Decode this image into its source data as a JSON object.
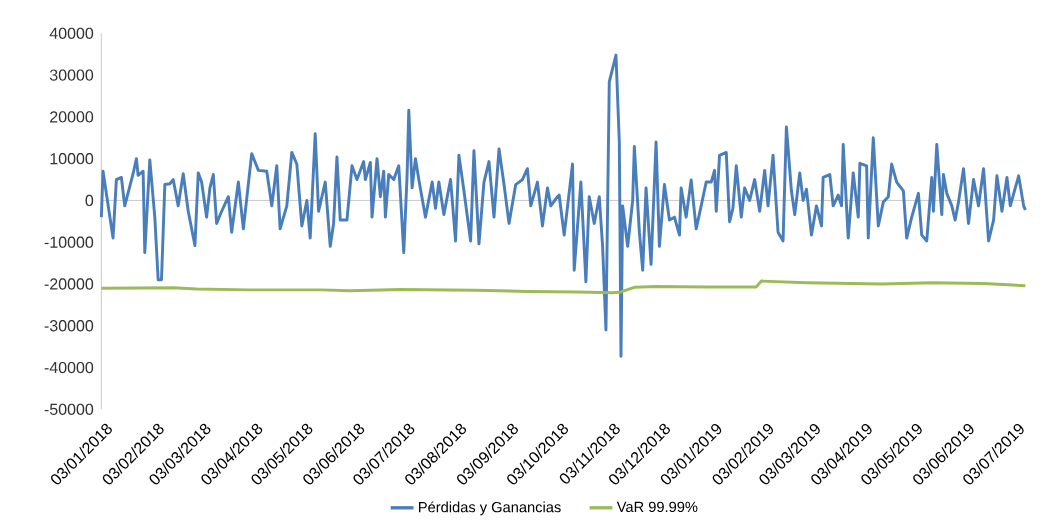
{
  "chart_data": {
    "type": "line",
    "legend": "bottom",
    "line_style": "solid",
    "xlim": [
      "2018-01-03",
      "2019-07-10"
    ],
    "ylim": [
      -50000,
      40000
    ],
    "yticks": [
      -50000,
      -40000,
      -30000,
      -20000,
      -10000,
      0,
      10000,
      20000,
      30000,
      40000
    ],
    "xticks": [
      {
        "value": "2018-01-03",
        "label": "03/01/2018"
      },
      {
        "value": "2018-02-03",
        "label": "03/02/2018"
      },
      {
        "value": "2018-03-03",
        "label": "03/03/2018"
      },
      {
        "value": "2018-04-03",
        "label": "03/04/2018"
      },
      {
        "value": "2018-05-03",
        "label": "03/05/2018"
      },
      {
        "value": "2018-06-03",
        "label": "03/06/2018"
      },
      {
        "value": "2018-07-03",
        "label": "03/07/2018"
      },
      {
        "value": "2018-08-03",
        "label": "03/08/2018"
      },
      {
        "value": "2018-09-03",
        "label": "03/09/2018"
      },
      {
        "value": "2018-10-03",
        "label": "03/10/2018"
      },
      {
        "value": "2018-11-03",
        "label": "03/11/2018"
      },
      {
        "value": "2018-12-03",
        "label": "03/12/2018"
      },
      {
        "value": "2019-01-03",
        "label": "03/01/2019"
      },
      {
        "value": "2019-02-03",
        "label": "03/02/2019"
      },
      {
        "value": "2019-03-03",
        "label": "03/03/2019"
      },
      {
        "value": "2019-04-03",
        "label": "03/04/2019"
      },
      {
        "value": "2019-05-03",
        "label": "03/05/2019"
      },
      {
        "value": "2019-06-03",
        "label": "03/06/2019"
      },
      {
        "value": "2019-07-03",
        "label": "03/07/2019"
      }
    ],
    "series": [
      {
        "name": "Pérdidas y Ganancias",
        "color": "#4a7ebb",
        "x": [
          "2018-01-03",
          "2018-01-04",
          "2018-01-10",
          "2018-01-12",
          "2018-01-15",
          "2018-01-17",
          "2018-01-22",
          "2018-01-24",
          "2018-01-25",
          "2018-01-28",
          "2018-01-29",
          "2018-02-01",
          "2018-02-04",
          "2018-02-06",
          "2018-02-08",
          "2018-02-10",
          "2018-02-13",
          "2018-02-15",
          "2018-02-18",
          "2018-02-21",
          "2018-02-24",
          "2018-02-28",
          "2018-03-02",
          "2018-03-04",
          "2018-03-07",
          "2018-03-09",
          "2018-03-11",
          "2018-03-13",
          "2018-03-16",
          "2018-03-20",
          "2018-03-22",
          "2018-03-26",
          "2018-03-29",
          "2018-04-03",
          "2018-04-07",
          "2018-04-12",
          "2018-04-15",
          "2018-04-18",
          "2018-04-20",
          "2018-04-24",
          "2018-04-27",
          "2018-04-30",
          "2018-05-03",
          "2018-05-06",
          "2018-05-08",
          "2018-05-11",
          "2018-05-13",
          "2018-05-17",
          "2018-05-20",
          "2018-05-22",
          "2018-05-24",
          "2018-05-26",
          "2018-05-30",
          "2018-06-02",
          "2018-06-05",
          "2018-06-09",
          "2018-06-10",
          "2018-06-13",
          "2018-06-14",
          "2018-06-17",
          "2018-06-19",
          "2018-06-21",
          "2018-06-22",
          "2018-06-24",
          "2018-06-27",
          "2018-06-30",
          "2018-07-03",
          "2018-07-05",
          "2018-07-06",
          "2018-07-08",
          "2018-07-10",
          "2018-07-12",
          "2018-07-16",
          "2018-07-20",
          "2018-07-22",
          "2018-07-24",
          "2018-07-27",
          "2018-07-31",
          "2018-08-03",
          "2018-08-05",
          "2018-08-08",
          "2018-08-12",
          "2018-08-14",
          "2018-08-17",
          "2018-08-20",
          "2018-08-23",
          "2018-08-26",
          "2018-08-29",
          "2018-09-01",
          "2018-09-04",
          "2018-09-08",
          "2018-09-12",
          "2018-09-15",
          "2018-09-17",
          "2018-09-21",
          "2018-09-24",
          "2018-09-27",
          "2018-09-29",
          "2018-10-03",
          "2018-10-04",
          "2018-10-07",
          "2018-10-12",
          "2018-10-13",
          "2018-10-17",
          "2018-10-20",
          "2018-10-22",
          "2018-10-25",
          "2018-10-28",
          "2018-10-30",
          "2018-11-01",
          "2018-11-03",
          "2018-11-07",
          "2018-11-09",
          "2018-11-10",
          "2018-11-11",
          "2018-11-14",
          "2018-11-17",
          "2018-11-18",
          "2018-11-21",
          "2018-11-23",
          "2018-11-25",
          "2018-11-28",
          "2018-12-01",
          "2018-12-03",
          "2018-12-06",
          "2018-12-09",
          "2018-12-12",
          "2018-12-15",
          "2018-12-16",
          "2018-12-19",
          "2018-12-22",
          "2018-12-25",
          "2018-12-28",
          "2018-12-31",
          "2019-01-03",
          "2019-01-05",
          "2019-01-06",
          "2019-01-08",
          "2019-01-12",
          "2019-01-14",
          "2019-01-16",
          "2019-01-18",
          "2019-01-21",
          "2019-01-23",
          "2019-01-26",
          "2019-01-29",
          "2019-02-01",
          "2019-02-04",
          "2019-02-06",
          "2019-02-09",
          "2019-02-12",
          "2019-02-15",
          "2019-02-17",
          "2019-02-20",
          "2019-02-22",
          "2019-02-25",
          "2019-02-27",
          "2019-03-01",
          "2019-03-04",
          "2019-03-07",
          "2019-03-10",
          "2019-03-11",
          "2019-03-15",
          "2019-03-17",
          "2019-03-20",
          "2019-03-22",
          "2019-03-23",
          "2019-03-26",
          "2019-03-29",
          "2019-04-01",
          "2019-04-02",
          "2019-04-06",
          "2019-04-07",
          "2019-04-10",
          "2019-04-13",
          "2019-04-16",
          "2019-04-19",
          "2019-04-21",
          "2019-04-24",
          "2019-04-28",
          "2019-04-30",
          "2019-05-03",
          "2019-05-07",
          "2019-05-09",
          "2019-05-12",
          "2019-05-15",
          "2019-05-16",
          "2019-05-18",
          "2019-05-21",
          "2019-05-22",
          "2019-05-24",
          "2019-05-27",
          "2019-05-29",
          "2019-05-31",
          "2019-06-03",
          "2019-06-06",
          "2019-06-09",
          "2019-06-12",
          "2019-06-15",
          "2019-06-18",
          "2019-06-21",
          "2019-06-23",
          "2019-06-26",
          "2019-06-29",
          "2019-07-01",
          "2019-07-06",
          "2019-07-09",
          "2019-07-10"
        ],
        "values": [
          -4000,
          7000,
          -9000,
          5000,
          5500,
          -1300,
          6400,
          10000,
          6000,
          7000,
          -12500,
          9700,
          -4000,
          -19000,
          -19000,
          3800,
          4000,
          5000,
          -1300,
          6400,
          -2600,
          -10800,
          6600,
          4400,
          -4000,
          3000,
          6200,
          -5500,
          -2600,
          900,
          -7600,
          4400,
          -6800,
          11200,
          7200,
          7000,
          -1300,
          8300,
          -6800,
          -1300,
          11500,
          8700,
          -6100,
          0,
          -9000,
          16000,
          -2600,
          4400,
          -11000,
          -5500,
          10400,
          -4700,
          -4700,
          8300,
          5000,
          9300,
          5000,
          9100,
          -4000,
          10000,
          900,
          7000,
          -4000,
          6200,
          5000,
          8300,
          -12500,
          6200,
          21600,
          3000,
          10000,
          5000,
          -4000,
          4400,
          -1900,
          4400,
          -3400,
          5000,
          -9700,
          10800,
          2300,
          -9700,
          11900,
          -10400,
          4400,
          9300,
          -4000,
          12300,
          3800,
          -5500,
          3800,
          5000,
          7600,
          -1300,
          4400,
          -6100,
          3000,
          -1300,
          900,
          1300,
          -8300,
          8700,
          -16700,
          4400,
          -19500,
          900,
          -5500,
          900,
          -11000,
          -31000,
          28400,
          34800,
          14000,
          -37300,
          -1300,
          -11000,
          0,
          12900,
          -7600,
          -16700,
          3000,
          -15300,
          14000,
          -11000,
          3800,
          -4700,
          -4000,
          -8300,
          3000,
          -4000,
          4900,
          -6800,
          -1300,
          4400,
          4400,
          7200,
          -2600,
          10800,
          11500,
          -5100,
          -1900,
          8300,
          -4000,
          3000,
          0,
          5000,
          -2600,
          7200,
          -1300,
          10800,
          -7600,
          -9700,
          17600,
          2300,
          -3400,
          6600,
          0,
          2700,
          -8300,
          -1300,
          -6100,
          5500,
          6200,
          -1300,
          1300,
          -1300,
          13400,
          -9000,
          6600,
          -4000,
          8900,
          8300,
          -9000,
          15000,
          -6100,
          -400,
          900,
          8700,
          4400,
          2300,
          -9000,
          -4000,
          1700,
          -8300,
          -9700,
          5500,
          -2600,
          13400,
          -3400,
          6200,
          1700,
          -1300,
          -4700,
          -400,
          7600,
          -5500,
          5000,
          -1300,
          7600,
          -9700,
          -4700,
          5900,
          -2600,
          5500,
          -1300,
          5900,
          -1300,
          -2300
        ]
      },
      {
        "name": "VaR 99.99%",
        "color": "#9bbb59",
        "x": [
          "2018-01-03",
          "2018-02-15",
          "2018-03-01",
          "2018-04-01",
          "2018-05-15",
          "2018-06-01",
          "2018-07-01",
          "2018-08-15",
          "2018-09-15",
          "2018-10-15",
          "2018-11-05",
          "2018-11-10",
          "2018-11-18",
          "2018-12-01",
          "2019-01-01",
          "2019-01-30",
          "2019-02-02",
          "2019-03-01",
          "2019-04-15",
          "2019-05-15",
          "2019-06-15",
          "2019-07-10"
        ],
        "values": [
          -21000,
          -20900,
          -21200,
          -21400,
          -21400,
          -21600,
          -21300,
          -21500,
          -21800,
          -21900,
          -22100,
          -21900,
          -20800,
          -20600,
          -20700,
          -20700,
          -19300,
          -19700,
          -20000,
          -19700,
          -19900,
          -20400
        ]
      }
    ]
  }
}
